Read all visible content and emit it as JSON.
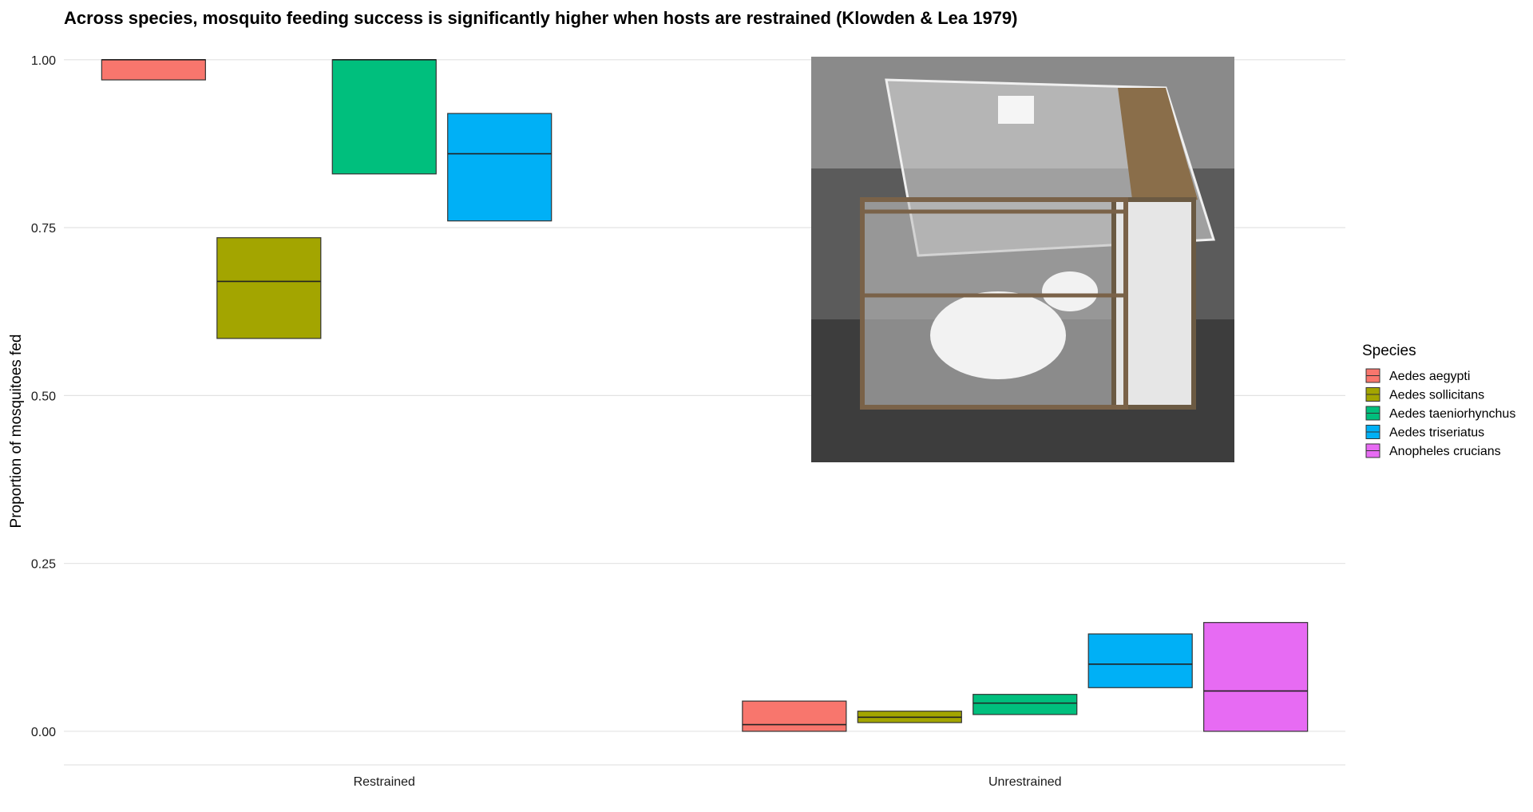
{
  "chart_data": {
    "type": "box",
    "title": "Across species, mosquito feeding success is significantly higher when hosts are restrained (Klowden & Lea 1979)",
    "xlabel": "",
    "ylabel": "Proportion of mosquitoes fed",
    "ylim": [
      -0.05,
      1.02
    ],
    "yticks": [
      "0.00",
      "0.25",
      "0.50",
      "0.75",
      "1.00"
    ],
    "ytick_values": [
      0,
      0.25,
      0.5,
      0.75,
      1.0
    ],
    "grid": true,
    "categories": [
      "Restrained",
      "Unrestrained"
    ],
    "legend": {
      "title": "Species",
      "position": "right"
    },
    "series": [
      {
        "name": "Aedes aegypti",
        "color": "#F8766D",
        "boxes": [
          {
            "category": "Restrained",
            "q1": 0.97,
            "median": 1.0,
            "q3": 1.0
          },
          {
            "category": "Unrestrained",
            "q1": 0.0,
            "median": 0.01,
            "q3": 0.045
          }
        ]
      },
      {
        "name": "Aedes sollicitans",
        "color": "#A3A500",
        "boxes": [
          {
            "category": "Restrained",
            "q1": 0.585,
            "median": 0.67,
            "q3": 0.735
          },
          {
            "category": "Unrestrained",
            "q1": 0.013,
            "median": 0.021,
            "q3": 0.03
          }
        ]
      },
      {
        "name": "Aedes taeniorhynchus",
        "color": "#00BF7D",
        "boxes": [
          {
            "category": "Restrained",
            "q1": 0.83,
            "median": 1.0,
            "q3": 1.0
          },
          {
            "category": "Unrestrained",
            "q1": 0.025,
            "median": 0.042,
            "q3": 0.055
          }
        ]
      },
      {
        "name": "Aedes triseriatus",
        "color": "#00B0F6",
        "boxes": [
          {
            "category": "Restrained",
            "q1": 0.76,
            "median": 0.86,
            "q3": 0.92
          },
          {
            "category": "Unrestrained",
            "q1": 0.065,
            "median": 0.1,
            "q3": 0.145
          }
        ]
      },
      {
        "name": "Anopheles crucians",
        "color": "#E76BF3",
        "boxes": [
          {
            "category": "Unrestrained",
            "q1": 0.0,
            "median": 0.06,
            "q3": 0.162
          }
        ]
      }
    ],
    "annotations": [
      {
        "type": "photo",
        "depicts": "cage-with-rabbit-photo"
      }
    ]
  }
}
